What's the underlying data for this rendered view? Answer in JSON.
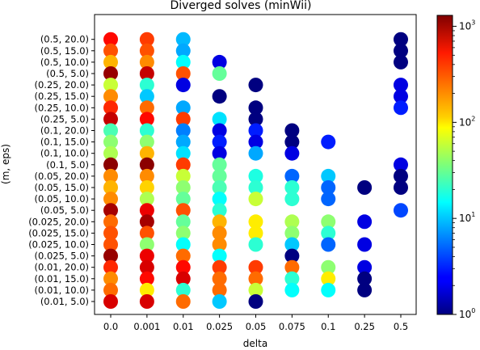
{
  "chart_data": {
    "type": "scatter",
    "title": "Diverged solves (minWii)",
    "xlabel": "delta",
    "ylabel": "(m, eps)",
    "x_categories": [
      "0.0",
      "0.001",
      "0.01",
      "0.025",
      "0.05",
      "0.075",
      "0.1",
      "0.25",
      "0.5"
    ],
    "y_categories": [
      "(0.01, 5.0)",
      "(0.01, 10.0)",
      "(0.01, 15.0)",
      "(0.01, 20.0)",
      "(0.025, 5.0)",
      "(0.025, 10.0)",
      "(0.025, 15.0)",
      "(0.025, 20.0)",
      "(0.05, 5.0)",
      "(0.05, 10.0)",
      "(0.05, 15.0)",
      "(0.05, 20.0)",
      "(0.1, 5.0)",
      "(0.1, 10.0)",
      "(0.1, 15.0)",
      "(0.1, 20.0)",
      "(0.25, 5.0)",
      "(0.25, 10.0)",
      "(0.25, 15.0)",
      "(0.25, 20.0)",
      "(0.5, 5.0)",
      "(0.5, 10.0)",
      "(0.5, 15.0)",
      "(0.5, 20.0)"
    ],
    "colorbar": {
      "scale": "log",
      "range": [
        1,
        1300
      ],
      "cmap": "jet",
      "ticks": [
        "10^0",
        "10^1",
        "10^2",
        "10^3"
      ]
    },
    "points": [
      {
        "x": "0.0",
        "y": "(0.5, 20.0)",
        "v": 500
      },
      {
        "x": "0.001",
        "y": "(0.5, 20.0)",
        "v": 350
      },
      {
        "x": "0.01",
        "y": "(0.5, 20.0)",
        "v": 9
      },
      {
        "x": "0.5",
        "y": "(0.5, 20.0)",
        "v": 1
      },
      {
        "x": "0.0",
        "y": "(0.5, 15.0)",
        "v": 300
      },
      {
        "x": "0.001",
        "y": "(0.5, 15.0)",
        "v": 300
      },
      {
        "x": "0.01",
        "y": "(0.5, 15.0)",
        "v": 8
      },
      {
        "x": "0.5",
        "y": "(0.5, 15.0)",
        "v": 1
      },
      {
        "x": "0.0",
        "y": "(0.5, 10.0)",
        "v": 150
      },
      {
        "x": "0.001",
        "y": "(0.5, 10.0)",
        "v": 200
      },
      {
        "x": "0.01",
        "y": "(0.5, 10.0)",
        "v": 15
      },
      {
        "x": "0.025",
        "y": "(0.5, 10.0)",
        "v": 2
      },
      {
        "x": "0.5",
        "y": "(0.5, 10.0)",
        "v": 1
      },
      {
        "x": "0.0",
        "y": "(0.5, 5.0)",
        "v": 1100
      },
      {
        "x": "0.001",
        "y": "(0.5, 5.0)",
        "v": 800
      },
      {
        "x": "0.01",
        "y": "(0.5, 5.0)",
        "v": 300
      },
      {
        "x": "0.025",
        "y": "(0.5, 5.0)",
        "v": 30
      },
      {
        "x": "0.0",
        "y": "(0.25, 20.0)",
        "v": 60
      },
      {
        "x": "0.001",
        "y": "(0.25, 20.0)",
        "v": 20
      },
      {
        "x": "0.01",
        "y": "(0.25, 20.0)",
        "v": 2
      },
      {
        "x": "0.05",
        "y": "(0.25, 20.0)",
        "v": 1
      },
      {
        "x": "0.5",
        "y": "(0.25, 20.0)",
        "v": 2
      },
      {
        "x": "0.0",
        "y": "(0.25, 15.0)",
        "v": 200
      },
      {
        "x": "0.001",
        "y": "(0.25, 15.0)",
        "v": 10
      },
      {
        "x": "0.025",
        "y": "(0.25, 15.0)",
        "v": 1
      },
      {
        "x": "0.5",
        "y": "(0.25, 15.0)",
        "v": 2
      },
      {
        "x": "0.0",
        "y": "(0.25, 10.0)",
        "v": 400
      },
      {
        "x": "0.001",
        "y": "(0.25, 10.0)",
        "v": 250
      },
      {
        "x": "0.01",
        "y": "(0.25, 10.0)",
        "v": 8
      },
      {
        "x": "0.05",
        "y": "(0.25, 10.0)",
        "v": 1
      },
      {
        "x": "0.5",
        "y": "(0.25, 10.0)",
        "v": 3
      },
      {
        "x": "0.0",
        "y": "(0.25, 5.0)",
        "v": 800
      },
      {
        "x": "0.001",
        "y": "(0.25, 5.0)",
        "v": 500
      },
      {
        "x": "0.01",
        "y": "(0.25, 5.0)",
        "v": 350
      },
      {
        "x": "0.025",
        "y": "(0.25, 5.0)",
        "v": 12
      },
      {
        "x": "0.05",
        "y": "(0.25, 5.0)",
        "v": 1
      },
      {
        "x": "0.0",
        "y": "(0.1, 20.0)",
        "v": 25
      },
      {
        "x": "0.001",
        "y": "(0.1, 20.0)",
        "v": 20
      },
      {
        "x": "0.01",
        "y": "(0.1, 20.0)",
        "v": 6
      },
      {
        "x": "0.025",
        "y": "(0.1, 20.0)",
        "v": 2
      },
      {
        "x": "0.05",
        "y": "(0.1, 20.0)",
        "v": 3
      },
      {
        "x": "0.075",
        "y": "(0.1, 20.0)",
        "v": 1
      },
      {
        "x": "0.0",
        "y": "(0.1, 15.0)",
        "v": 40
      },
      {
        "x": "0.001",
        "y": "(0.1, 15.0)",
        "v": 40
      },
      {
        "x": "0.01",
        "y": "(0.1, 15.0)",
        "v": 8
      },
      {
        "x": "0.025",
        "y": "(0.1, 15.0)",
        "v": 3
      },
      {
        "x": "0.05",
        "y": "(0.1, 15.0)",
        "v": 2
      },
      {
        "x": "0.075",
        "y": "(0.1, 15.0)",
        "v": 1
      },
      {
        "x": "0.1",
        "y": "(0.1, 15.0)",
        "v": 3
      },
      {
        "x": "0.0",
        "y": "(0.1, 10.0)",
        "v": 50
      },
      {
        "x": "0.001",
        "y": "(0.1, 10.0)",
        "v": 150
      },
      {
        "x": "0.01",
        "y": "(0.1, 10.0)",
        "v": 12
      },
      {
        "x": "0.025",
        "y": "(0.1, 10.0)",
        "v": 2
      },
      {
        "x": "0.05",
        "y": "(0.1, 10.0)",
        "v": 8
      },
      {
        "x": "0.075",
        "y": "(0.1, 10.0)",
        "v": 2
      },
      {
        "x": "0.0",
        "y": "(0.1, 5.0)",
        "v": 1200
      },
      {
        "x": "0.001",
        "y": "(0.1, 5.0)",
        "v": 1200
      },
      {
        "x": "0.01",
        "y": "(0.1, 5.0)",
        "v": 350
      },
      {
        "x": "0.025",
        "y": "(0.1, 5.0)",
        "v": 30
      },
      {
        "x": "0.5",
        "y": "(0.1, 5.0)",
        "v": 2
      },
      {
        "x": "0.0",
        "y": "(0.05, 20.0)",
        "v": 200
      },
      {
        "x": "0.001",
        "y": "(0.05, 20.0)",
        "v": 200
      },
      {
        "x": "0.01",
        "y": "(0.05, 20.0)",
        "v": 60
      },
      {
        "x": "0.025",
        "y": "(0.05, 20.0)",
        "v": 30
      },
      {
        "x": "0.05",
        "y": "(0.05, 20.0)",
        "v": 18
      },
      {
        "x": "0.075",
        "y": "(0.05, 20.0)",
        "v": 5
      },
      {
        "x": "0.1",
        "y": "(0.05, 20.0)",
        "v": 10
      },
      {
        "x": "0.5",
        "y": "(0.05, 20.0)",
        "v": 1
      },
      {
        "x": "0.0",
        "y": "(0.05, 15.0)",
        "v": 150
      },
      {
        "x": "0.001",
        "y": "(0.05, 15.0)",
        "v": 120
      },
      {
        "x": "0.01",
        "y": "(0.05, 15.0)",
        "v": 40
      },
      {
        "x": "0.025",
        "y": "(0.05, 15.0)",
        "v": 25
      },
      {
        "x": "0.05",
        "y": "(0.05, 15.0)",
        "v": 20
      },
      {
        "x": "0.075",
        "y": "(0.05, 15.0)",
        "v": 20
      },
      {
        "x": "0.1",
        "y": "(0.05, 15.0)",
        "v": 5
      },
      {
        "x": "0.25",
        "y": "(0.05, 15.0)",
        "v": 1
      },
      {
        "x": "0.5",
        "y": "(0.05, 15.0)",
        "v": 1
      },
      {
        "x": "0.0",
        "y": "(0.05, 10.0)",
        "v": 200
      },
      {
        "x": "0.001",
        "y": "(0.05, 10.0)",
        "v": 50
      },
      {
        "x": "0.01",
        "y": "(0.05, 10.0)",
        "v": 30
      },
      {
        "x": "0.025",
        "y": "(0.05, 10.0)",
        "v": 15
      },
      {
        "x": "0.05",
        "y": "(0.05, 10.0)",
        "v": 60
      },
      {
        "x": "0.075",
        "y": "(0.05, 10.0)",
        "v": 20
      },
      {
        "x": "0.1",
        "y": "(0.05, 10.0)",
        "v": 5
      },
      {
        "x": "0.0",
        "y": "(0.05, 5.0)",
        "v": 1000
      },
      {
        "x": "0.001",
        "y": "(0.05, 5.0)",
        "v": 600
      },
      {
        "x": "0.01",
        "y": "(0.05, 5.0)",
        "v": 300
      },
      {
        "x": "0.025",
        "y": "(0.05, 5.0)",
        "v": 20
      },
      {
        "x": "0.5",
        "y": "(0.05, 5.0)",
        "v": 4
      },
      {
        "x": "0.0",
        "y": "(0.025, 20.0)",
        "v": 250
      },
      {
        "x": "0.001",
        "y": "(0.025, 20.0)",
        "v": 1000
      },
      {
        "x": "0.01",
        "y": "(0.025, 20.0)",
        "v": 30
      },
      {
        "x": "0.025",
        "y": "(0.025, 20.0)",
        "v": 150
      },
      {
        "x": "0.05",
        "y": "(0.025, 20.0)",
        "v": 100
      },
      {
        "x": "0.075",
        "y": "(0.025, 20.0)",
        "v": 50
      },
      {
        "x": "0.1",
        "y": "(0.025, 20.0)",
        "v": 40
      },
      {
        "x": "0.25",
        "y": "(0.025, 20.0)",
        "v": 2
      },
      {
        "x": "0.0",
        "y": "(0.025, 15.0)",
        "v": 300
      },
      {
        "x": "0.001",
        "y": "(0.025, 15.0)",
        "v": 300
      },
      {
        "x": "0.01",
        "y": "(0.025, 15.0)",
        "v": 40
      },
      {
        "x": "0.025",
        "y": "(0.025, 15.0)",
        "v": 200
      },
      {
        "x": "0.05",
        "y": "(0.025, 15.0)",
        "v": 100
      },
      {
        "x": "0.075",
        "y": "(0.025, 15.0)",
        "v": 40
      },
      {
        "x": "0.1",
        "y": "(0.025, 15.0)",
        "v": 20
      },
      {
        "x": "0.0",
        "y": "(0.025, 10.0)",
        "v": 300
      },
      {
        "x": "0.001",
        "y": "(0.025, 10.0)",
        "v": 40
      },
      {
        "x": "0.01",
        "y": "(0.025, 10.0)",
        "v": 15
      },
      {
        "x": "0.025",
        "y": "(0.025, 10.0)",
        "v": 200
      },
      {
        "x": "0.05",
        "y": "(0.025, 10.0)",
        "v": 20
      },
      {
        "x": "0.075",
        "y": "(0.025, 10.0)",
        "v": 10
      },
      {
        "x": "0.1",
        "y": "(0.025, 10.0)",
        "v": 5
      },
      {
        "x": "0.25",
        "y": "(0.025, 10.0)",
        "v": 2
      },
      {
        "x": "0.0",
        "y": "(0.025, 5.0)",
        "v": 1100
      },
      {
        "x": "0.001",
        "y": "(0.025, 5.0)",
        "v": 600
      },
      {
        "x": "0.01",
        "y": "(0.025, 5.0)",
        "v": 250
      },
      {
        "x": "0.025",
        "y": "(0.025, 5.0)",
        "v": 15
      },
      {
        "x": "0.075",
        "y": "(0.025, 5.0)",
        "v": 1
      },
      {
        "x": "0.0",
        "y": "(0.01, 20.0)",
        "v": 400
      },
      {
        "x": "0.001",
        "y": "(0.01, 20.0)",
        "v": 700
      },
      {
        "x": "0.01",
        "y": "(0.01, 20.0)",
        "v": 500
      },
      {
        "x": "0.025",
        "y": "(0.01, 20.0)",
        "v": 350
      },
      {
        "x": "0.05",
        "y": "(0.01, 20.0)",
        "v": 350
      },
      {
        "x": "0.075",
        "y": "(0.01, 20.0)",
        "v": 250
      },
      {
        "x": "0.1",
        "y": "(0.01, 20.0)",
        "v": 40
      },
      {
        "x": "0.25",
        "y": "(0.01, 20.0)",
        "v": 2
      },
      {
        "x": "0.0",
        "y": "(0.01, 15.0)",
        "v": 200
      },
      {
        "x": "0.001",
        "y": "(0.01, 15.0)",
        "v": 500
      },
      {
        "x": "0.01",
        "y": "(0.01, 15.0)",
        "v": 700
      },
      {
        "x": "0.025",
        "y": "(0.01, 15.0)",
        "v": 250
      },
      {
        "x": "0.05",
        "y": "(0.01, 15.0)",
        "v": 250
      },
      {
        "x": "0.075",
        "y": "(0.01, 15.0)",
        "v": 20
      },
      {
        "x": "0.1",
        "y": "(0.01, 15.0)",
        "v": 100
      },
      {
        "x": "0.25",
        "y": "(0.01, 15.0)",
        "v": 1
      },
      {
        "x": "0.0",
        "y": "(0.01, 10.0)",
        "v": 250
      },
      {
        "x": "0.001",
        "y": "(0.01, 10.0)",
        "v": 100
      },
      {
        "x": "0.01",
        "y": "(0.01, 10.0)",
        "v": 20
      },
      {
        "x": "0.025",
        "y": "(0.01, 10.0)",
        "v": 250
      },
      {
        "x": "0.05",
        "y": "(0.01, 10.0)",
        "v": 60
      },
      {
        "x": "0.075",
        "y": "(0.01, 10.0)",
        "v": 15
      },
      {
        "x": "0.1",
        "y": "(0.01, 10.0)",
        "v": 15
      },
      {
        "x": "0.25",
        "y": "(0.01, 10.0)",
        "v": 1
      },
      {
        "x": "0.0",
        "y": "(0.01, 5.0)",
        "v": 700
      },
      {
        "x": "0.001",
        "y": "(0.01, 5.0)",
        "v": 700
      },
      {
        "x": "0.01",
        "y": "(0.01, 5.0)",
        "v": 250
      },
      {
        "x": "0.025",
        "y": "(0.01, 5.0)",
        "v": 10
      },
      {
        "x": "0.05",
        "y": "(0.01, 5.0)",
        "v": 1
      }
    ]
  }
}
